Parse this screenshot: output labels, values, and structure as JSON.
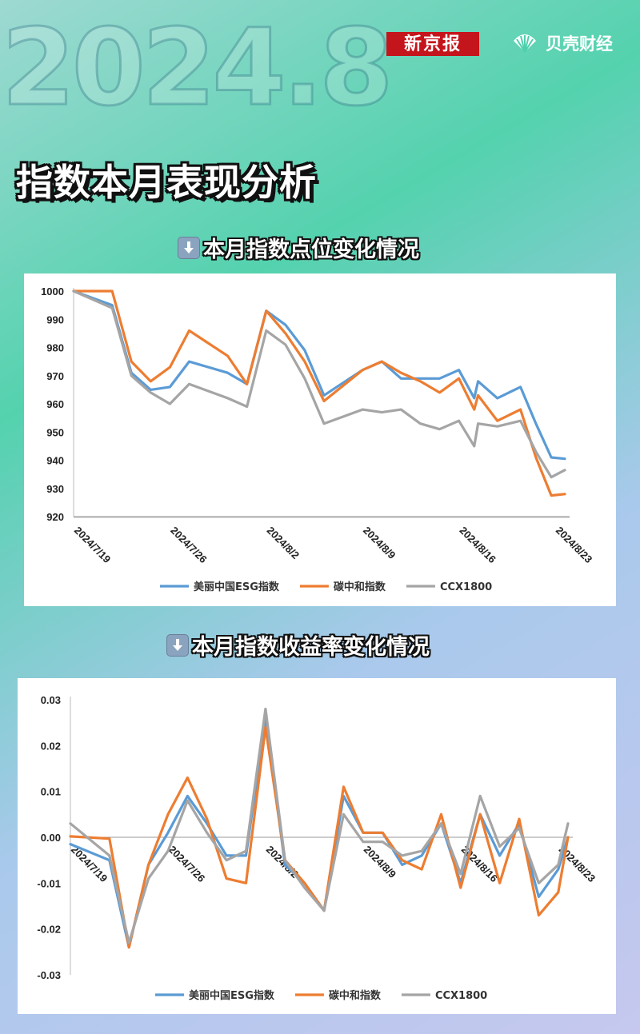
{
  "header": {
    "year": "2024.8",
    "brand_left": "新京报",
    "brand_right": "贝壳财经",
    "title": "指数本月表现分析"
  },
  "section1": {
    "title": "本月指数点位变化情况",
    "icon": "down-arrow-icon"
  },
  "section2": {
    "title": "本月指数收益率变化情况",
    "icon": "down-arrow-icon"
  },
  "colors": {
    "esg": "#5b9bd5",
    "carbon": "#ed7d31",
    "ccx": "#a5a5a5"
  },
  "chart_data": [
    {
      "type": "line",
      "ylim": [
        920,
        1000
      ],
      "yticks": [
        "920",
        "930",
        "940",
        "950",
        "960",
        "970",
        "980",
        "990",
        "1000"
      ],
      "xtick_labels": [
        "2024/7/19",
        "2024/7/26",
        "2024/8/2",
        "2024/8/9",
        "2024/8/16",
        "2024/8/23"
      ],
      "x_count": 24,
      "xtick_positions": [
        0,
        5,
        10,
        15,
        20,
        25
      ],
      "series": [
        {
          "name": "美丽中国ESG指数",
          "color": "#5b9bd5",
          "x": [
            0,
            2,
            3,
            4,
            5,
            6,
            8,
            9,
            10,
            11,
            12,
            13,
            15,
            16,
            17,
            18,
            19,
            20,
            20.8,
            21,
            22,
            23.2,
            24,
            24.8,
            25.5
          ],
          "values": [
            1000,
            995,
            971,
            965,
            966,
            975,
            971,
            967,
            993,
            988,
            979,
            963,
            972,
            975,
            969,
            969,
            969,
            972,
            962,
            968,
            962,
            966,
            953,
            941,
            940.5
          ]
        },
        {
          "name": "碳中和指数",
          "color": "#ed7d31",
          "x": [
            0,
            2,
            3,
            4,
            5,
            6,
            8,
            9,
            10,
            11,
            12,
            13,
            15,
            16,
            17,
            18,
            19,
            20,
            20.8,
            21,
            22,
            23.2,
            24,
            24.8,
            25.5
          ],
          "values": [
            1000,
            1000,
            975,
            968,
            973,
            986,
            977,
            967,
            993,
            985,
            975,
            961,
            972,
            975,
            971,
            968,
            964,
            969,
            958,
            963,
            954,
            958,
            941,
            927.5,
            928
          ]
        },
        {
          "name": "CCX1800",
          "color": "#a5a5a5",
          "x": [
            0,
            2,
            3,
            4,
            5,
            6,
            8,
            9,
            10,
            11,
            12,
            13,
            15,
            16,
            17,
            18,
            19,
            20,
            20.8,
            21,
            22,
            23.2,
            24,
            24.8,
            25.5
          ],
          "values": [
            1000,
            994,
            970,
            964,
            960,
            967,
            962,
            959,
            986,
            981,
            969,
            953,
            958,
            957,
            958,
            953,
            951,
            954,
            945,
            953,
            952,
            954,
            943,
            934,
            936.5
          ]
        }
      ]
    },
    {
      "type": "line",
      "ylim": [
        -0.03,
        0.03
      ],
      "yticks": [
        "-0.03",
        "-0.02",
        "-0.01",
        "0.00",
        "0.01",
        "0.02",
        "0.03"
      ],
      "xtick_labels": [
        "2024/7/19",
        "2024/7/26",
        "2024/8/2",
        "2024/8/9",
        "2024/8/16",
        "2024/8/23"
      ],
      "xtick_positions": [
        0,
        5,
        10,
        15,
        20,
        25
      ],
      "series": [
        {
          "name": "美丽中国ESG指数",
          "color": "#5b9bd5",
          "x": [
            0,
            2,
            3,
            4,
            5,
            6,
            7,
            8,
            9,
            10,
            11,
            12,
            13,
            14,
            15,
            16,
            17,
            18,
            19,
            20,
            21,
            22,
            23,
            24,
            25,
            25.5
          ],
          "values": [
            -0.0015,
            -0.005,
            -0.024,
            -0.006,
            0.001,
            0.009,
            0.003,
            -0.004,
            -0.004,
            0.026,
            -0.006,
            -0.01,
            -0.016,
            0.009,
            0.001,
            0.001,
            -0.006,
            -0.004,
            0.003,
            -0.01,
            0.005,
            -0.004,
            0.003,
            -0.013,
            -0.007,
            0.0
          ]
        },
        {
          "name": "碳中和指数",
          "color": "#ed7d31",
          "x": [
            0,
            2,
            3,
            4,
            5,
            6,
            7,
            8,
            9,
            10,
            11,
            12,
            13,
            14,
            15,
            16,
            17,
            18,
            19,
            20,
            21,
            22,
            23,
            24,
            25,
            25.5
          ],
          "values": [
            0.0002,
            -0.0003,
            -0.024,
            -0.006,
            0.005,
            0.013,
            0.004,
            -0.009,
            -0.01,
            0.024,
            -0.005,
            -0.01,
            -0.016,
            0.011,
            0.001,
            0.001,
            -0.005,
            -0.007,
            0.005,
            -0.011,
            0.005,
            -0.01,
            0.004,
            -0.017,
            -0.012,
            0.0
          ]
        },
        {
          "name": "CCX1800",
          "color": "#a5a5a5",
          "x": [
            0,
            2,
            3,
            4,
            5,
            6,
            7,
            8,
            9,
            10,
            11,
            12,
            13,
            14,
            15,
            16,
            17,
            18,
            19,
            20,
            21,
            22,
            23,
            24,
            25,
            25.5
          ],
          "values": [
            0.003,
            -0.004,
            -0.023,
            -0.009,
            -0.003,
            0.008,
            0.001,
            -0.005,
            -0.003,
            0.028,
            -0.005,
            -0.011,
            -0.016,
            0.005,
            -0.001,
            -0.001,
            -0.004,
            -0.003,
            0.003,
            -0.008,
            0.009,
            -0.002,
            0.002,
            -0.01,
            -0.006,
            0.003
          ]
        }
      ]
    }
  ]
}
